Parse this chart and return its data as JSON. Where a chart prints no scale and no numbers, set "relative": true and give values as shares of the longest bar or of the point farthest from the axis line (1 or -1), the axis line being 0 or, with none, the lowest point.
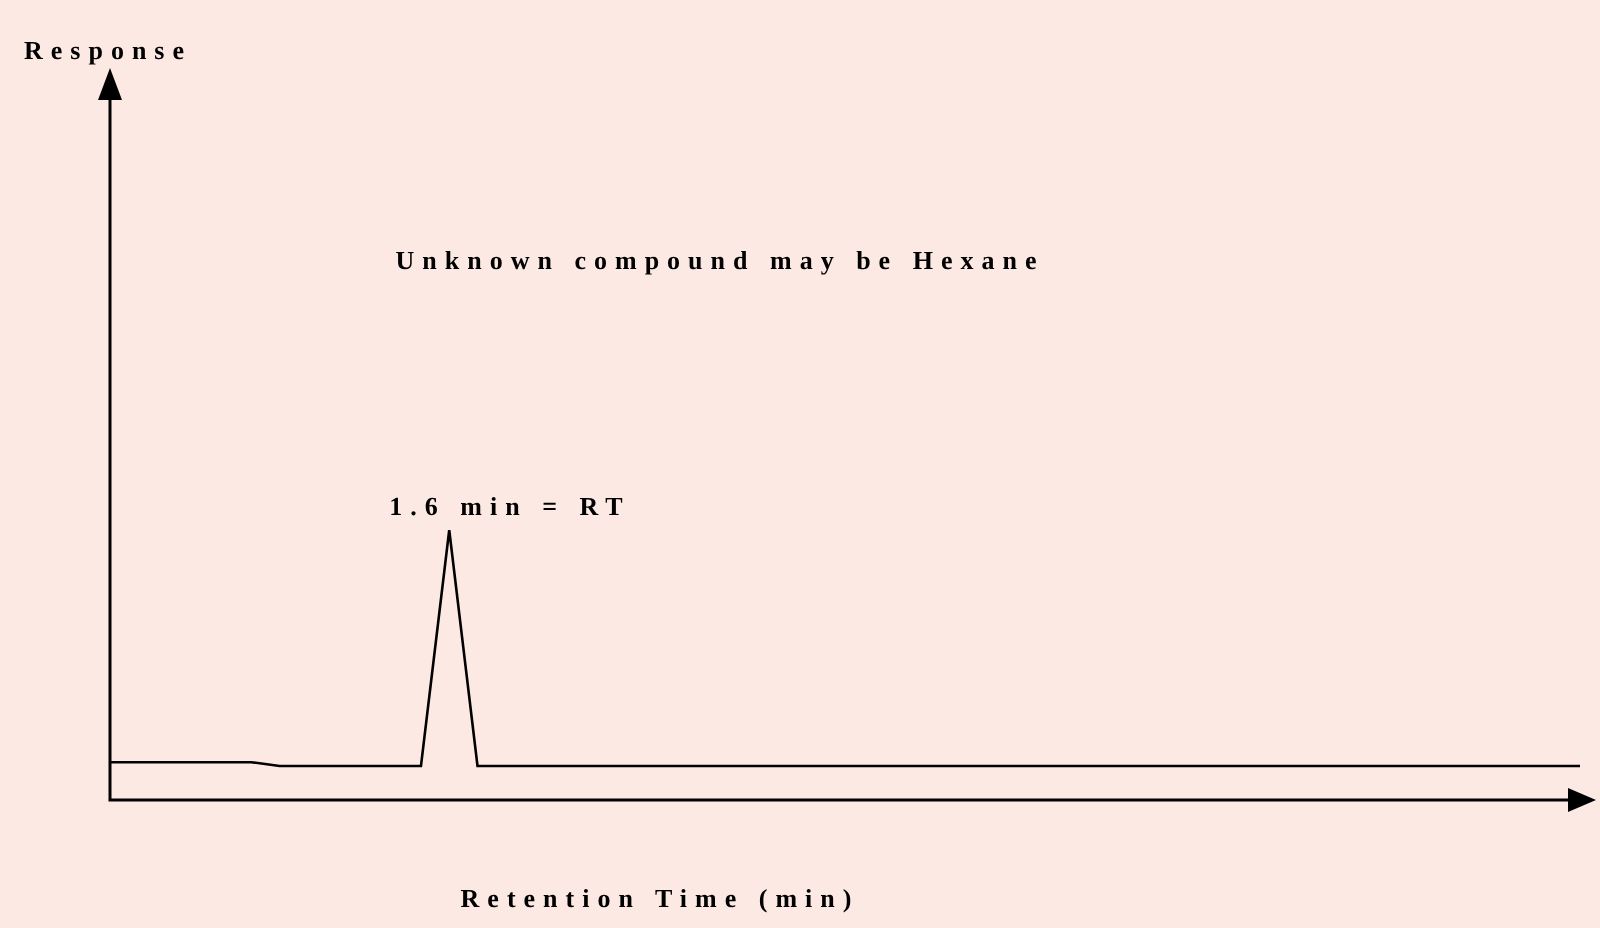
{
  "chart_data": {
    "type": "line",
    "relative": true,
    "xlabel": "Retention Time (min)",
    "annotations": [
      "Response",
      "Unknown compound may be Hexane",
      "1.6 min = RT"
    ],
    "categories": [
      null,
      null,
      null,
      null,
      null,
      null,
      null,
      null,
      null,
      null,
      null,
      null,
      null,
      null,
      null,
      null,
      null,
      null,
      null,
      null,
      null,
      null,
      null,
      null,
      null,
      null,
      null,
      null,
      null,
      null,
      null,
      null,
      null,
      null,
      null,
      null,
      null,
      null,
      null,
      null,
      null,
      null,
      null,
      null,
      null,
      null,
      null,
      null,
      null,
      null,
      null,
      null,
      null
    ],
    "series": [
      {
        "color": "#000000",
        "values": [
          0.14,
          0.14,
          0.14,
          0.14,
          0.14,
          0.14,
          0.126,
          0.126,
          0.126,
          0.126,
          0.126,
          0.126,
          1,
          0.126,
          0.126,
          0.126,
          0.126,
          0.126,
          0.126,
          0.126,
          0.126,
          0.126,
          0.126,
          0.126,
          0.126,
          0.126,
          0.126,
          0.126,
          0.126,
          0.126,
          0.126,
          0.126,
          0.126,
          0.126,
          0.126,
          0.126,
          0.126,
          0.126,
          0.126,
          0.126,
          0.126,
          0.126,
          0.126,
          0.126,
          0.126,
          0.126,
          0.126,
          0.126,
          0.126,
          0.126,
          0.126,
          0.126,
          0.126
        ]
      }
    ],
    "marker": "none",
    "legend": false
  }
}
